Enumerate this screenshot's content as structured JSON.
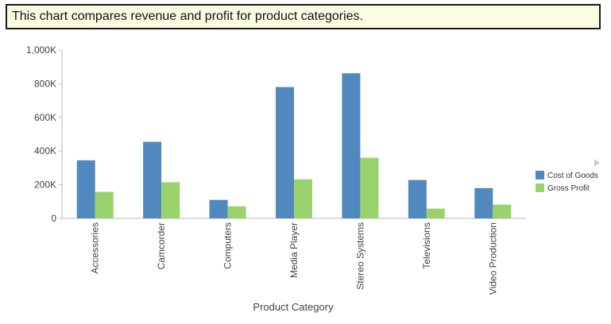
{
  "banner": {
    "text": "This chart compares revenue and profit for product categories."
  },
  "chart_data": {
    "type": "bar",
    "categories": [
      "Accessories",
      "Camcorder",
      "Computers",
      "Media Player",
      "Stereo Systems",
      "Televisions",
      "Video Production"
    ],
    "series": [
      {
        "name": "Cost of Goods",
        "color": "#5188bd",
        "values": [
          345000,
          455000,
          110000,
          780000,
          862000,
          228000,
          180000
        ]
      },
      {
        "name": "Gross Profit",
        "color": "#9ad36e",
        "values": [
          158000,
          215000,
          72000,
          232000,
          360000,
          58000,
          82000
        ]
      }
    ],
    "yticks": [
      "0",
      "200K",
      "400K",
      "600K",
      "800K",
      "1,000K"
    ],
    "ylim": [
      0,
      1000000
    ],
    "xlabel": "Product Category",
    "ylabel": "",
    "legend_placement": "right",
    "grid": false
  },
  "legend_nav": {
    "icon": "triangle-right-icon"
  }
}
